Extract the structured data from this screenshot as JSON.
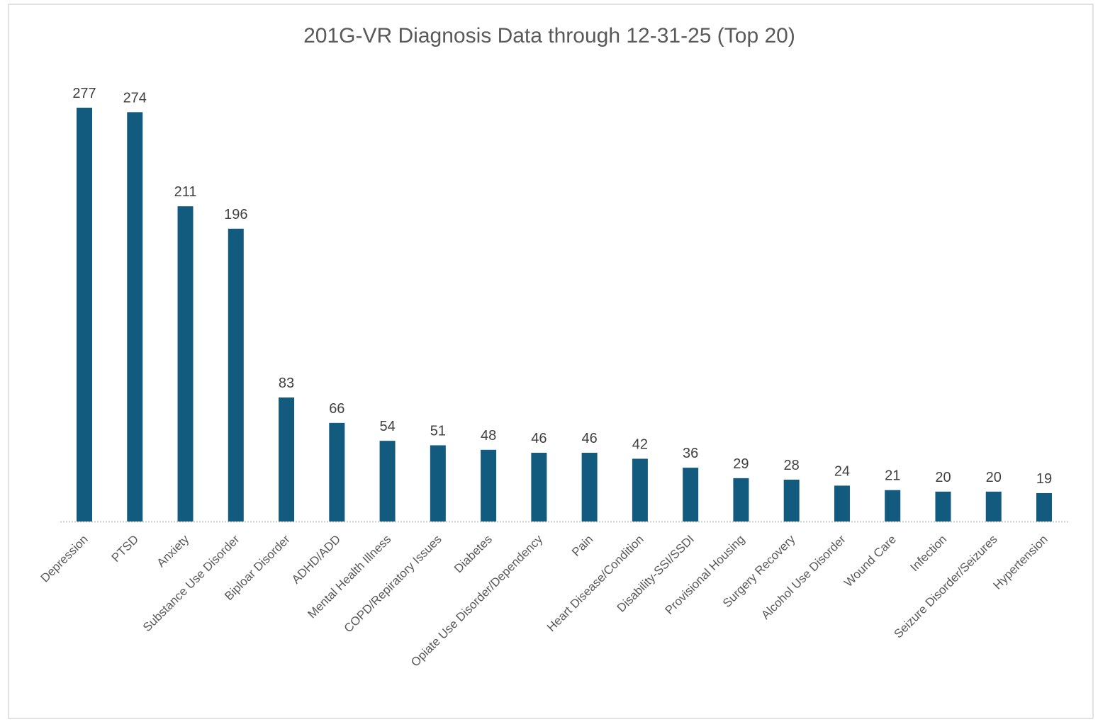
{
  "chart_data": {
    "type": "bar",
    "title": "201G-VR Diagnosis Data through 12-31-25 (Top 20)",
    "categories": [
      "Depression",
      "PTSD",
      "Anxiety",
      "Substance Use Disorder",
      "Biploar Disorder",
      "ADHD/ADD",
      "Mental Health Illness",
      "COPD/Repiratory Issues",
      "Diabetes",
      "Opiate Use Disorder/Dependency",
      "Pain",
      "Heart Disease/Condition",
      "Disability-SSI/SSDI",
      "Provisional Housing",
      "Surgery Recovery",
      "Alcohol Use Disorder",
      "Wound Care",
      "Infection",
      "Seizure Disorder/Seizures",
      "Hypertension"
    ],
    "values": [
      277,
      274,
      211,
      196,
      83,
      66,
      54,
      51,
      48,
      46,
      46,
      42,
      36,
      29,
      28,
      24,
      21,
      20,
      20,
      19
    ],
    "color": "#125b7f"
  }
}
